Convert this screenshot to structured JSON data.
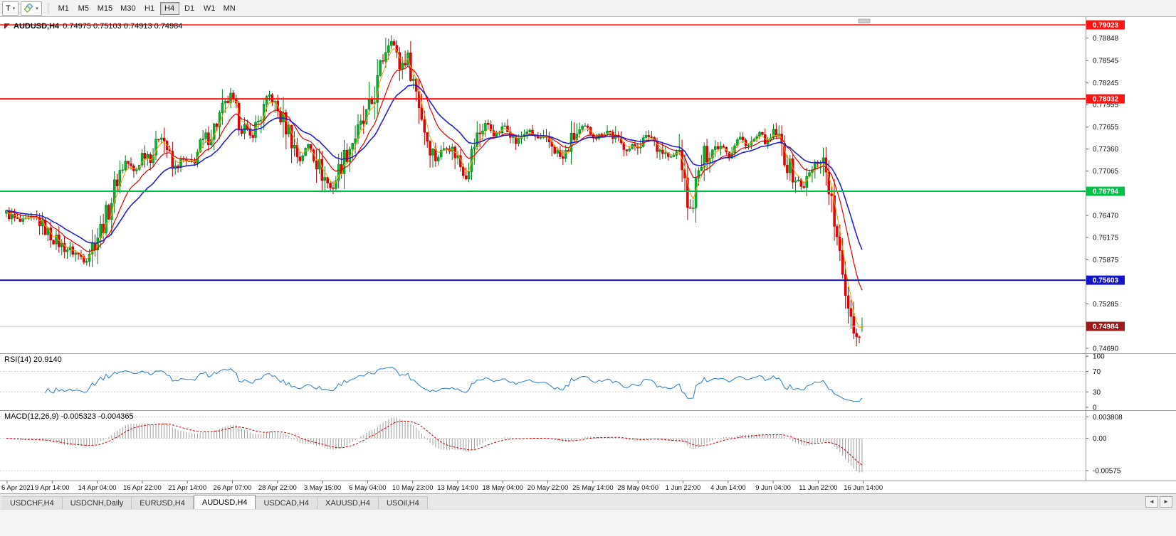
{
  "toolbar": {
    "tool_button_label": "T",
    "timeframes": [
      "M1",
      "M5",
      "M15",
      "M30",
      "H1",
      "H4",
      "D1",
      "W1",
      "MN"
    ],
    "active_timeframe": "H4"
  },
  "chart": {
    "title_symbol": "AUDUSD,H4",
    "ohlc_text": "0.74975 0.75103 0.74913 0.74984",
    "open": "0.74975",
    "high": "0.75103",
    "low": "0.74913",
    "close": "0.74984",
    "candle_count": 310,
    "candle_up_color": "#00b42a",
    "candle_up_stroke": "#007d1d",
    "candle_down_color": "#e60000",
    "candle_down_stroke": "#b30000",
    "ma_fast_color": "#ff9a00",
    "ma_mid_color": "#e00000",
    "ma_slow_color": "#2323cc",
    "price_axis": {
      "min": 0.74623,
      "max": 0.79128,
      "tick_labels": [
        "0.78848",
        "0.78545",
        "0.78245",
        "0.77955",
        "0.77655",
        "0.77360",
        "0.77065",
        "0.76470",
        "0.76175",
        "0.75875",
        "0.75285",
        "0.74690"
      ]
    },
    "hlines": [
      {
        "price": 0.79023,
        "label": "0.79023",
        "color": "#ff1414",
        "width": 1.5
      },
      {
        "price": 0.78032,
        "label": "0.78032",
        "color": "#ff1414",
        "width": 2
      },
      {
        "price": 0.76794,
        "label": "0.76794",
        "color": "#00c24a",
        "width": 2
      },
      {
        "price": 0.75603,
        "label": "0.75603",
        "color": "#1414c8",
        "width": 2
      }
    ],
    "bid_line": {
      "price": 0.74984,
      "label": "0.74984",
      "line_color": "#c0c0c0",
      "badge_color": "#9e1b1b"
    },
    "date_labels": [
      "6 Apr 2021",
      "9 Apr 14:00",
      "14 Apr 04:00",
      "16 Apr 22:00",
      "21 Apr 14:00",
      "26 Apr 07:00",
      "28 Apr 22:00",
      "3 May 15:00",
      "6 May 04:00",
      "10 May 23:00",
      "13 May 14:00",
      "18 May 04:00",
      "20 May 22:00",
      "25 May 14:00",
      "28 May 04:00",
      "1 Jun 22:00",
      "4 Jun 14:00",
      "9 Jun 04:00",
      "11 Jun 22:00",
      "16 Jun 14:00"
    ],
    "price_path": [
      [
        0.0,
        0.765
      ],
      [
        0.015,
        0.7638
      ],
      [
        0.035,
        0.7643
      ],
      [
        0.05,
        0.7622
      ],
      [
        0.065,
        0.7606
      ],
      [
        0.08,
        0.7597
      ],
      [
        0.092,
        0.7589
      ],
      [
        0.1,
        0.7606
      ],
      [
        0.11,
        0.7628
      ],
      [
        0.12,
        0.7656
      ],
      [
        0.13,
        0.77
      ],
      [
        0.14,
        0.7721
      ],
      [
        0.15,
        0.7703
      ],
      [
        0.16,
        0.7733
      ],
      [
        0.17,
        0.7726
      ],
      [
        0.18,
        0.7759
      ],
      [
        0.186,
        0.7744
      ],
      [
        0.195,
        0.7706
      ],
      [
        0.205,
        0.7722
      ],
      [
        0.215,
        0.7713
      ],
      [
        0.228,
        0.7742
      ],
      [
        0.24,
        0.7758
      ],
      [
        0.252,
        0.7786
      ],
      [
        0.262,
        0.7806
      ],
      [
        0.272,
        0.7775
      ],
      [
        0.285,
        0.7752
      ],
      [
        0.298,
        0.7782
      ],
      [
        0.308,
        0.7809
      ],
      [
        0.318,
        0.7784
      ],
      [
        0.33,
        0.7761
      ],
      [
        0.342,
        0.772
      ],
      [
        0.354,
        0.7744
      ],
      [
        0.366,
        0.771
      ],
      [
        0.38,
        0.7681
      ],
      [
        0.392,
        0.7718
      ],
      [
        0.405,
        0.7748
      ],
      [
        0.418,
        0.7772
      ],
      [
        0.43,
        0.7806
      ],
      [
        0.442,
        0.7869
      ],
      [
        0.45,
        0.7887
      ],
      [
        0.46,
        0.7845
      ],
      [
        0.468,
        0.7861
      ],
      [
        0.478,
        0.7819
      ],
      [
        0.49,
        0.7756
      ],
      [
        0.502,
        0.7722
      ],
      [
        0.514,
        0.7742
      ],
      [
        0.526,
        0.7729
      ],
      [
        0.536,
        0.7697
      ],
      [
        0.548,
        0.7747
      ],
      [
        0.56,
        0.7771
      ],
      [
        0.572,
        0.7754
      ],
      [
        0.584,
        0.7769
      ],
      [
        0.596,
        0.7744
      ],
      [
        0.608,
        0.7761
      ],
      [
        0.62,
        0.775
      ],
      [
        0.636,
        0.7744
      ],
      [
        0.65,
        0.7721
      ],
      [
        0.662,
        0.7751
      ],
      [
        0.676,
        0.7765
      ],
      [
        0.69,
        0.7752
      ],
      [
        0.703,
        0.7761
      ],
      [
        0.716,
        0.7744
      ],
      [
        0.728,
        0.7736
      ],
      [
        0.74,
        0.7744
      ],
      [
        0.752,
        0.7755
      ],
      [
        0.764,
        0.7736
      ],
      [
        0.776,
        0.7723
      ],
      [
        0.788,
        0.7734
      ],
      [
        0.794,
        0.7673
      ],
      [
        0.8,
        0.7649
      ],
      [
        0.806,
        0.7688
      ],
      [
        0.815,
        0.7725
      ],
      [
        0.827,
        0.7738
      ],
      [
        0.838,
        0.7742
      ],
      [
        0.845,
        0.7727
      ],
      [
        0.856,
        0.7751
      ],
      [
        0.868,
        0.7741
      ],
      [
        0.88,
        0.7755
      ],
      [
        0.89,
        0.7744
      ],
      [
        0.898,
        0.776
      ],
      [
        0.906,
        0.7738
      ],
      [
        0.914,
        0.7712
      ],
      [
        0.922,
        0.7697
      ],
      [
        0.93,
        0.7684
      ],
      [
        0.938,
        0.77
      ],
      [
        0.946,
        0.7716
      ],
      [
        0.953,
        0.7726
      ],
      [
        0.959,
        0.7703
      ],
      [
        0.965,
        0.7658
      ],
      [
        0.971,
        0.7611
      ],
      [
        0.977,
        0.7568
      ],
      [
        0.983,
        0.7534
      ],
      [
        0.989,
        0.7506
      ],
      [
        0.994,
        0.7482
      ],
      [
        1.0,
        0.74984
      ]
    ]
  },
  "indicators": {
    "rsi": {
      "label": "RSI(14) 20.9140",
      "value": "20.9140",
      "period": 14,
      "color": "#3a87c8",
      "levels": [
        {
          "value": 100,
          "label": "100"
        },
        {
          "value": 70,
          "label": "70"
        },
        {
          "value": 30,
          "label": "30"
        },
        {
          "value": 0,
          "label": "0"
        }
      ]
    },
    "macd": {
      "label": "MACD(12,26,9) -0.005323 -0.004365",
      "macd_value": "-0.005323",
      "signal_value": "-0.004365",
      "histogram_color": "#9c9c9c",
      "signal_color": "#d40000",
      "scale_max": 0.0045,
      "scale_min": -0.007,
      "levels": [
        {
          "value": 0.003808,
          "label": "0.003808"
        },
        {
          "value": 0,
          "label": "0.00"
        },
        {
          "value": -0.00575,
          "label": "-0.00575"
        }
      ]
    }
  },
  "tabs": {
    "items": [
      "USDCHF,H4",
      "USDCNH,Daily",
      "EURUSD,H4",
      "AUDUSD,H4",
      "USDCAD,H4",
      "XAUUSD,H4",
      "USOil,H4"
    ],
    "active": "AUDUSD,H4",
    "scroll_left": "◄",
    "scroll_right": "►"
  }
}
